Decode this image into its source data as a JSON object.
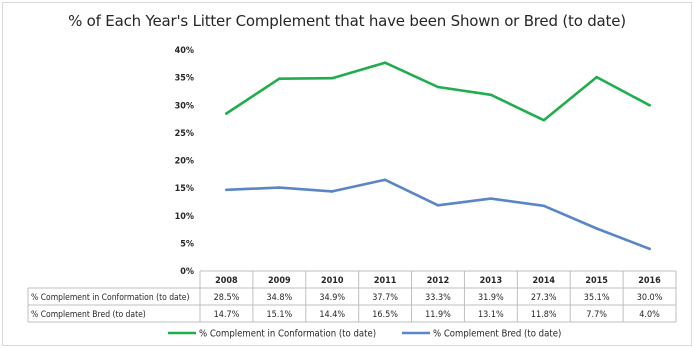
{
  "chart_data": {
    "type": "line",
    "title": "% of Each Year's Litter Complement that have been Shown or Bred (to date)",
    "categories": [
      "2008",
      "2009",
      "2010",
      "2011",
      "2012",
      "2013",
      "2014",
      "2015",
      "2016"
    ],
    "y_ticks": [
      "0%",
      "5%",
      "10%",
      "15%",
      "20%",
      "25%",
      "30%",
      "35%",
      "40%"
    ],
    "ylim": [
      0,
      40
    ],
    "grid": false,
    "legend_position": "bottom",
    "data_table": true,
    "series": [
      {
        "name": "% Complement in Conformation (to date)",
        "color": "#1fad4e",
        "values": [
          28.5,
          34.8,
          34.9,
          37.7,
          33.3,
          31.9,
          27.3,
          35.1,
          30.0
        ],
        "labels": [
          "28.5%",
          "34.8%",
          "34.9%",
          "37.7%",
          "33.3%",
          "31.9%",
          "27.3%",
          "35.1%",
          "30.0%"
        ]
      },
      {
        "name": "% Complement Bred (to date)",
        "color": "#5b86c5",
        "values": [
          14.7,
          15.1,
          14.4,
          16.5,
          11.9,
          13.1,
          11.8,
          7.7,
          4.0
        ],
        "labels": [
          "14.7%",
          "15.1%",
          "14.4%",
          "16.5%",
          "11.9%",
          "13.1%",
          "11.8%",
          "7.7%",
          "4.0%"
        ]
      }
    ]
  }
}
